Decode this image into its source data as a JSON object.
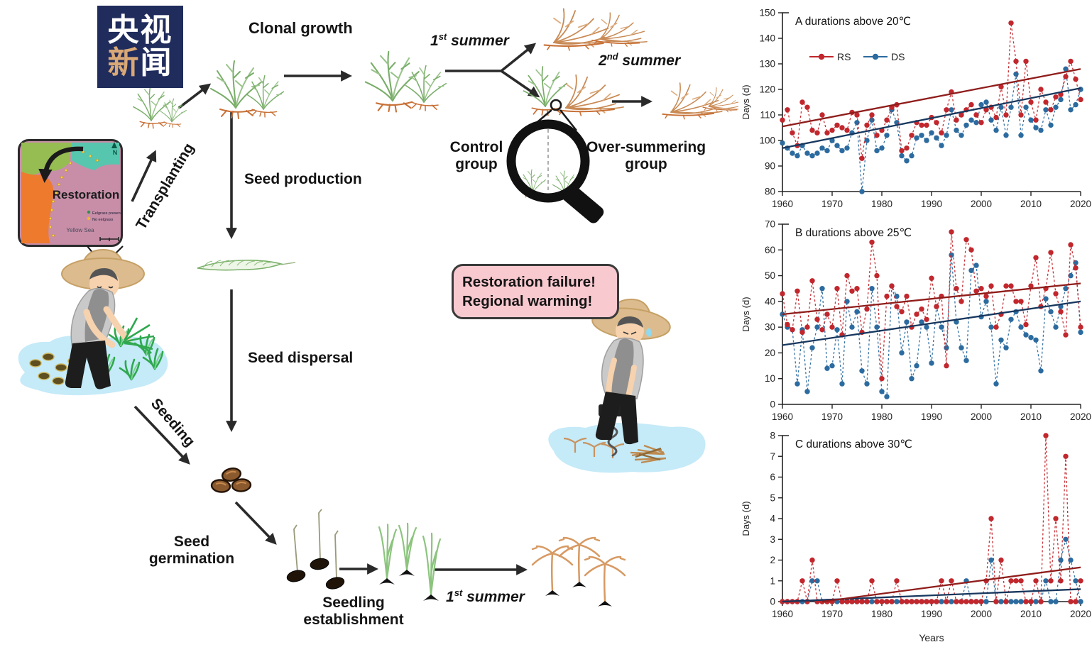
{
  "logo": {
    "top": "央视",
    "bottom_accent": "新",
    "bottom_rest": "闻"
  },
  "map": {
    "restoration": "Restoration",
    "sea": "Yellow Sea",
    "compass": "N",
    "legend": [
      {
        "label": "Eelgrass present",
        "color": "#2f8f4e"
      },
      {
        "label": "No eelgrass",
        "color": "#f0b43c"
      }
    ]
  },
  "flow": {
    "transplanting": "Transplanting",
    "clonal_growth": "Clonal growth",
    "first_summer": {
      "n": "1",
      "s": "st",
      "w": " summer"
    },
    "second_summer": {
      "n": "2",
      "s": "nd",
      "w": " summer"
    },
    "control_group_l1": "Control",
    "control_group_l2": "group",
    "oversummering_l1": "Over-summering",
    "oversummering_l2": "group",
    "seed_production": "Seed production",
    "seed_dispersal": "Seed dispersal",
    "seeding": "Seeding",
    "seed_germination_l1": "Seed",
    "seed_germination_l2": "germination",
    "seedling_l1": "Seedling",
    "seedling_l2": "establishment",
    "first_summer_bottom": {
      "n": "1",
      "s": "st",
      "w": " summer"
    },
    "bubble_l1": "Restoration failure!",
    "bubble_l2": "Regional warming!"
  },
  "colors": {
    "rs_red": "#c1272d",
    "ds_blue": "#2c6b9f",
    "trend_red": "#8f1d1b",
    "trend_navy": "#17375e",
    "arrow": "#2a2a2a",
    "bubble_pink": "#f8c9cf",
    "logo_navy": "#202c5c",
    "logo_accent": "#d9a876",
    "water": "#c5eaf8",
    "plant_green": "#79ad69",
    "plant_orange": "#c98a55"
  },
  "chart_data": [
    {
      "type": "line",
      "panel": "A",
      "title": "durations above 20℃",
      "ylabel": "Days (d)",
      "xlabel": "",
      "ylim": [
        80,
        150
      ],
      "ytick_step": 10,
      "xticks": [
        1960,
        1970,
        1980,
        1990,
        2000,
        2010,
        2020
      ],
      "x_start": 1960,
      "show_legend": true,
      "legend": [
        "RS",
        "DS"
      ],
      "series": [
        {
          "name": "RS",
          "color": "#c1272d",
          "values": [
            108,
            112,
            103,
            98,
            115,
            113,
            104,
            103,
            110,
            103,
            104,
            106,
            105,
            104,
            111,
            110,
            93,
            106,
            110,
            102,
            104,
            108,
            113,
            114,
            96,
            97,
            102,
            107,
            106,
            106,
            109,
            107,
            103,
            112,
            119,
            108,
            110,
            112,
            114,
            110,
            107,
            112,
            113,
            109,
            121,
            110,
            146,
            131,
            110,
            131,
            115,
            108,
            120,
            115,
            112,
            117,
            118,
            125,
            131,
            124,
            116
          ]
        },
        {
          "name": "DS",
          "color": "#2c6b9f",
          "values": [
            99,
            97,
            95,
            94,
            98,
            95,
            94,
            95,
            97,
            96,
            100,
            98,
            96,
            97,
            103,
            107,
            80,
            100,
            108,
            96,
            97,
            102,
            112,
            107,
            94,
            92,
            94,
            101,
            102,
            100,
            103,
            101,
            98,
            102,
            112,
            104,
            102,
            106,
            108,
            107,
            114,
            115,
            108,
            104,
            113,
            102,
            113,
            126,
            102,
            113,
            108,
            105,
            104,
            112,
            106,
            113,
            116,
            128,
            112,
            114,
            120
          ]
        }
      ],
      "trendlines": [
        {
          "name": "RS",
          "color": "#8f1d1b",
          "x1": 1960,
          "y1": 105.5,
          "x2": 2020,
          "y2": 128
        },
        {
          "name": "DS",
          "color": "#17375e",
          "x1": 1960,
          "y1": 97,
          "x2": 2020,
          "y2": 120.5
        }
      ]
    },
    {
      "type": "line",
      "panel": "B",
      "title": "durations above 25℃",
      "ylabel": "Days (d)",
      "xlabel": "",
      "ylim": [
        0,
        70
      ],
      "ytick_step": 10,
      "xticks": [
        1960,
        1970,
        1980,
        1990,
        2000,
        2010,
        2020
      ],
      "x_start": 1960,
      "show_legend": false,
      "legend": [],
      "series": [
        {
          "name": "RS",
          "color": "#c1272d",
          "values": [
            43,
            31,
            29,
            44,
            28,
            30,
            48,
            33,
            29,
            35,
            30,
            45,
            27,
            50,
            44,
            45,
            28,
            37,
            63,
            50,
            10,
            42,
            46,
            38,
            36,
            42,
            30,
            35,
            37,
            33,
            49,
            38,
            42,
            15,
            67,
            45,
            40,
            64,
            60,
            44,
            45,
            42,
            46,
            30,
            35,
            46,
            46,
            40,
            40,
            31,
            46,
            57,
            38,
            45,
            59,
            43,
            36,
            27,
            62,
            53,
            30
          ]
        },
        {
          "name": "DS",
          "color": "#2c6b9f",
          "values": [
            35,
            30,
            29,
            8,
            29,
            5,
            22,
            30,
            45,
            14,
            15,
            29,
            8,
            40,
            30,
            36,
            13,
            8,
            45,
            30,
            5,
            3,
            46,
            42,
            20,
            32,
            10,
            15,
            32,
            30,
            16,
            38,
            30,
            22,
            58,
            32,
            22,
            17,
            52,
            54,
            34,
            40,
            30,
            8,
            25,
            22,
            33,
            36,
            30,
            27,
            26,
            25,
            13,
            41,
            36,
            30,
            38,
            45,
            50,
            55,
            28
          ]
        }
      ],
      "trendlines": [
        {
          "name": "RS",
          "color": "#8f1d1b",
          "x1": 1960,
          "y1": 35,
          "x2": 2020,
          "y2": 47
        },
        {
          "name": "DS",
          "color": "#17375e",
          "x1": 1960,
          "y1": 23,
          "x2": 2020,
          "y2": 40
        }
      ]
    },
    {
      "type": "line",
      "panel": "C",
      "title": "durations above 30℃",
      "ylabel": "Days (d)",
      "xlabel": "Years",
      "ylim": [
        0,
        8
      ],
      "ytick_step": 1,
      "xticks": [
        1960,
        1970,
        1980,
        1990,
        2000,
        2010,
        2020
      ],
      "x_start": 1960,
      "show_legend": false,
      "legend": [],
      "series": [
        {
          "name": "RS",
          "color": "#c1272d",
          "values": [
            0,
            0,
            0,
            0,
            1,
            0,
            2,
            0,
            0,
            0,
            0,
            1,
            0,
            0,
            0,
            0,
            0,
            0,
            1,
            0,
            0,
            0,
            0,
            1,
            0,
            0,
            0,
            0,
            0,
            0,
            0,
            0,
            1,
            0,
            1,
            0,
            0,
            0,
            0,
            0,
            0,
            1,
            4,
            0,
            2,
            0,
            1,
            1,
            1,
            0,
            0,
            1,
            0,
            8,
            1,
            4,
            1,
            7,
            0,
            0,
            1
          ]
        },
        {
          "name": "DS",
          "color": "#2c6b9f",
          "values": [
            0,
            0,
            0,
            0,
            0,
            0,
            1,
            1,
            0,
            0,
            0,
            0,
            0,
            0,
            0,
            0,
            0,
            0,
            0,
            0,
            0,
            0,
            0,
            0,
            0,
            0,
            0,
            0,
            0,
            0,
            0,
            0,
            0,
            0,
            0,
            0,
            0,
            1,
            0,
            0,
            0,
            0,
            2,
            0,
            0,
            0,
            0,
            0,
            0,
            0,
            0,
            0,
            0,
            1,
            0,
            0,
            2,
            3,
            2,
            1,
            0
          ]
        }
      ],
      "trendlines": [
        {
          "name": "RS",
          "color": "#8f1d1b",
          "x1": 1968,
          "y1": 0,
          "x2": 2020,
          "y2": 1.65
        },
        {
          "name": "DS",
          "color": "#17375e",
          "x1": 1960,
          "y1": 0,
          "x2": 2020,
          "y2": 0.6
        }
      ]
    }
  ]
}
